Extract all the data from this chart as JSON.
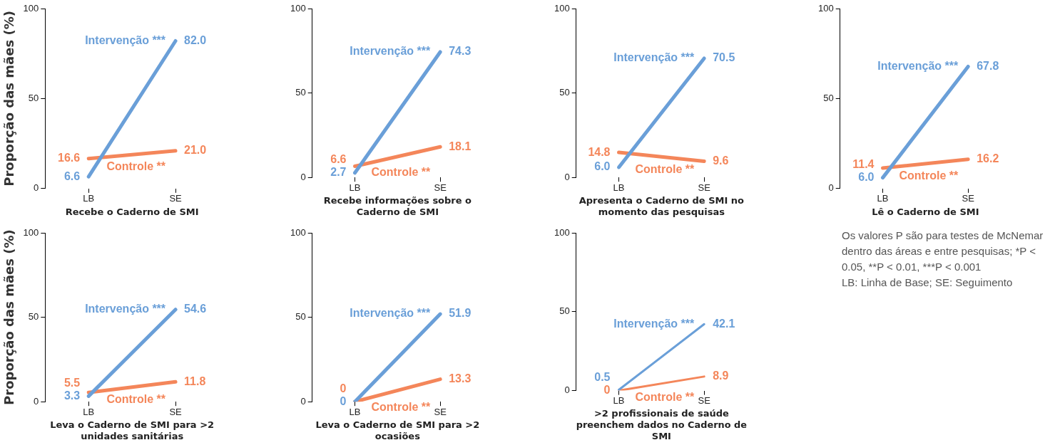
{
  "chart_data": [
    {
      "type": "line",
      "xlabel": "Recebe o Caderno de SMI",
      "ylabel": "Proporção das mães (%)",
      "categories": [
        "LB",
        "SE"
      ],
      "ylim": [
        0,
        100
      ],
      "yticks": [
        0,
        50,
        100
      ],
      "grid": false,
      "legend": false,
      "marker": "none",
      "line_style": "solid",
      "series": [
        {
          "name": "Intervenção ***",
          "color": "#6a9fd8",
          "values": [
            6.6,
            82.0
          ],
          "value_labels": [
            "6.6",
            "82.0"
          ]
        },
        {
          "name": "Controle **",
          "color": "#f4865a",
          "values": [
            16.6,
            21.0
          ],
          "value_labels": [
            "16.6",
            "21.0"
          ]
        }
      ]
    },
    {
      "type": "line",
      "xlabel": "Recebe informações sobre o Caderno de SMI",
      "categories": [
        "LB",
        "SE"
      ],
      "ylim": [
        0,
        100
      ],
      "yticks": [
        0,
        50,
        100
      ],
      "grid": false,
      "legend": false,
      "marker": "none",
      "line_style": "solid",
      "series": [
        {
          "name": "Intervenção ***",
          "color": "#6a9fd8",
          "values": [
            2.7,
            74.3
          ],
          "value_labels": [
            "2.7",
            "74.3"
          ]
        },
        {
          "name": "Controle **",
          "color": "#f4865a",
          "values": [
            6.6,
            18.1
          ],
          "value_labels": [
            "6.6",
            "18.1"
          ]
        }
      ]
    },
    {
      "type": "line",
      "xlabel": "Apresenta o Caderno de SMI no momento das pesquisas",
      "categories": [
        "LB",
        "SE"
      ],
      "ylim": [
        0,
        100
      ],
      "yticks": [
        0,
        50,
        100
      ],
      "grid": false,
      "legend": false,
      "marker": "none",
      "line_style": "solid",
      "series": [
        {
          "name": "Intervenção ***",
          "color": "#6a9fd8",
          "values": [
            6.0,
            70.5
          ],
          "value_labels": [
            "6.0",
            "70.5"
          ]
        },
        {
          "name": "Controle **",
          "color": "#f4865a",
          "values": [
            14.8,
            9.6
          ],
          "value_labels": [
            "14.8",
            "9.6"
          ]
        }
      ]
    },
    {
      "type": "line",
      "xlabel": "Lê o Caderno de SMI",
      "categories": [
        "LB",
        "SE"
      ],
      "ylim": [
        0,
        100
      ],
      "yticks": [
        0,
        50,
        100
      ],
      "grid": false,
      "legend": false,
      "marker": "none",
      "line_style": "solid",
      "series": [
        {
          "name": "Intervenção ***",
          "color": "#6a9fd8",
          "values": [
            6.0,
            67.8
          ],
          "value_labels": [
            "6.0",
            "67.8"
          ]
        },
        {
          "name": "Controle **",
          "color": "#f4865a",
          "values": [
            11.4,
            16.2
          ],
          "value_labels": [
            "11.4",
            "16.2"
          ]
        }
      ]
    },
    {
      "type": "line",
      "xlabel": "Leva o Caderno de SMI para >2 unidades sanitárias",
      "ylabel": "Proporção das mães (%)",
      "categories": [
        "LB",
        "SE"
      ],
      "ylim": [
        0,
        100
      ],
      "yticks": [
        0,
        50,
        100
      ],
      "grid": false,
      "legend": false,
      "marker": "none",
      "line_style": "solid",
      "series": [
        {
          "name": "Intervenção ***",
          "color": "#6a9fd8",
          "values": [
            3.3,
            54.6
          ],
          "value_labels": [
            "3.3",
            "54.6"
          ]
        },
        {
          "name": "Controle **",
          "color": "#f4865a",
          "values": [
            5.5,
            11.8
          ],
          "value_labels": [
            "5.5",
            "11.8"
          ]
        }
      ]
    },
    {
      "type": "line",
      "xlabel": "Leva o Caderno de SMI para >2 ocasiões",
      "categories": [
        "LB",
        "SE"
      ],
      "ylim": [
        0,
        100
      ],
      "yticks": [
        0,
        50,
        100
      ],
      "grid": false,
      "legend": false,
      "marker": "none",
      "line_style": "solid",
      "series": [
        {
          "name": "Intervenção ***",
          "color": "#6a9fd8",
          "values": [
            0,
            51.9
          ],
          "value_labels": [
            "0",
            "51.9"
          ]
        },
        {
          "name": "Controle **",
          "color": "#f4865a",
          "values": [
            0,
            13.3
          ],
          "value_labels": [
            "0",
            "13.3"
          ]
        }
      ]
    },
    {
      "type": "line",
      "xlabel": ">2 profissionais de saúde preenchem dados no Caderno de SMI",
      "categories": [
        "LB",
        "SE"
      ],
      "ylim": [
        0,
        100
      ],
      "yticks": [
        0,
        50,
        100
      ],
      "grid": false,
      "legend": false,
      "marker": "none",
      "line_style": "solid",
      "series": [
        {
          "name": "Intervenção ***",
          "color": "#6a9fd8",
          "values": [
            0.5,
            42.1
          ],
          "value_labels": [
            "0.5",
            "42.1"
          ]
        },
        {
          "name": "Controle **",
          "color": "#f4865a",
          "values": [
            0,
            8.9
          ],
          "value_labels": [
            "0",
            "8.9"
          ]
        }
      ]
    },
    {
      "type": "other",
      "annotations": [
        "Os valores P são para testes de McNemar dentro das áreas e entre pesquisas; *P < 0.05, **P < 0.01, ***P < 0.001",
        "LB: Linha de Base; SE: Seguimento"
      ]
    }
  ]
}
